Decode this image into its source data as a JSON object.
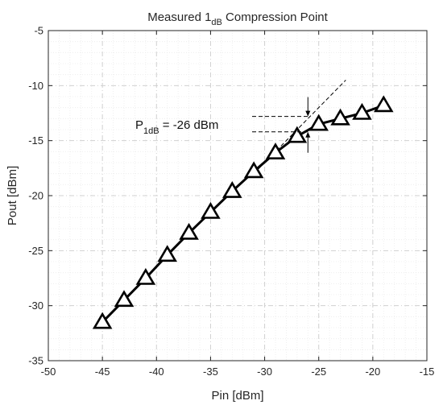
{
  "chart_data": {
    "type": "line",
    "title": {
      "main": "Measured 1",
      "sub": "dB",
      "rest": " Compression Point"
    },
    "xlabel": "Pin [dBm]",
    "ylabel": "Pout [dBm]",
    "xlim": [
      -50,
      -15
    ],
    "ylim": [
      -35,
      -5
    ],
    "xticks": [
      -50,
      -45,
      -40,
      -35,
      -30,
      -25,
      -20,
      -15
    ],
    "yticks": [
      -35,
      -30,
      -25,
      -20,
      -15,
      -10,
      -5
    ],
    "xtick_labels": [
      "-50",
      "-45",
      "-40",
      "-35",
      "-30",
      "-25",
      "-20",
      "-15"
    ],
    "ytick_labels": [
      "-35",
      "-30",
      "-25",
      "-20",
      "-15",
      "-10",
      "-5"
    ],
    "grid": true,
    "minor_grid": true,
    "series": [
      {
        "marker": "triangle",
        "color": "#000000",
        "x": [
          -45,
          -43,
          -41,
          -39,
          -37,
          -35,
          -33,
          -31,
          -29,
          -27,
          -25,
          -23,
          -21,
          -19
        ],
        "y": [
          -31.5,
          -29.5,
          -27.5,
          -25.4,
          -23.4,
          -21.5,
          -19.6,
          -17.8,
          -16.1,
          -14.6,
          -13.5,
          -13.0,
          -12.5,
          -11.8
        ]
      }
    ],
    "reference_line": {
      "style": "dashed",
      "x": [
        -31,
        -22.5
      ],
      "y": [
        -18.0,
        -9.5
      ]
    },
    "annotation": {
      "prefix": "P",
      "sub": "1dB",
      "rest": " = -26 dBm",
      "x_pin": -26,
      "upper_y": -12.8,
      "lower_y": -14.2
    },
    "colors": {
      "data": "#000000",
      "grid_major": "#d0d0d0",
      "grid_minor": "#ebebeb",
      "axes": "#262626"
    }
  }
}
